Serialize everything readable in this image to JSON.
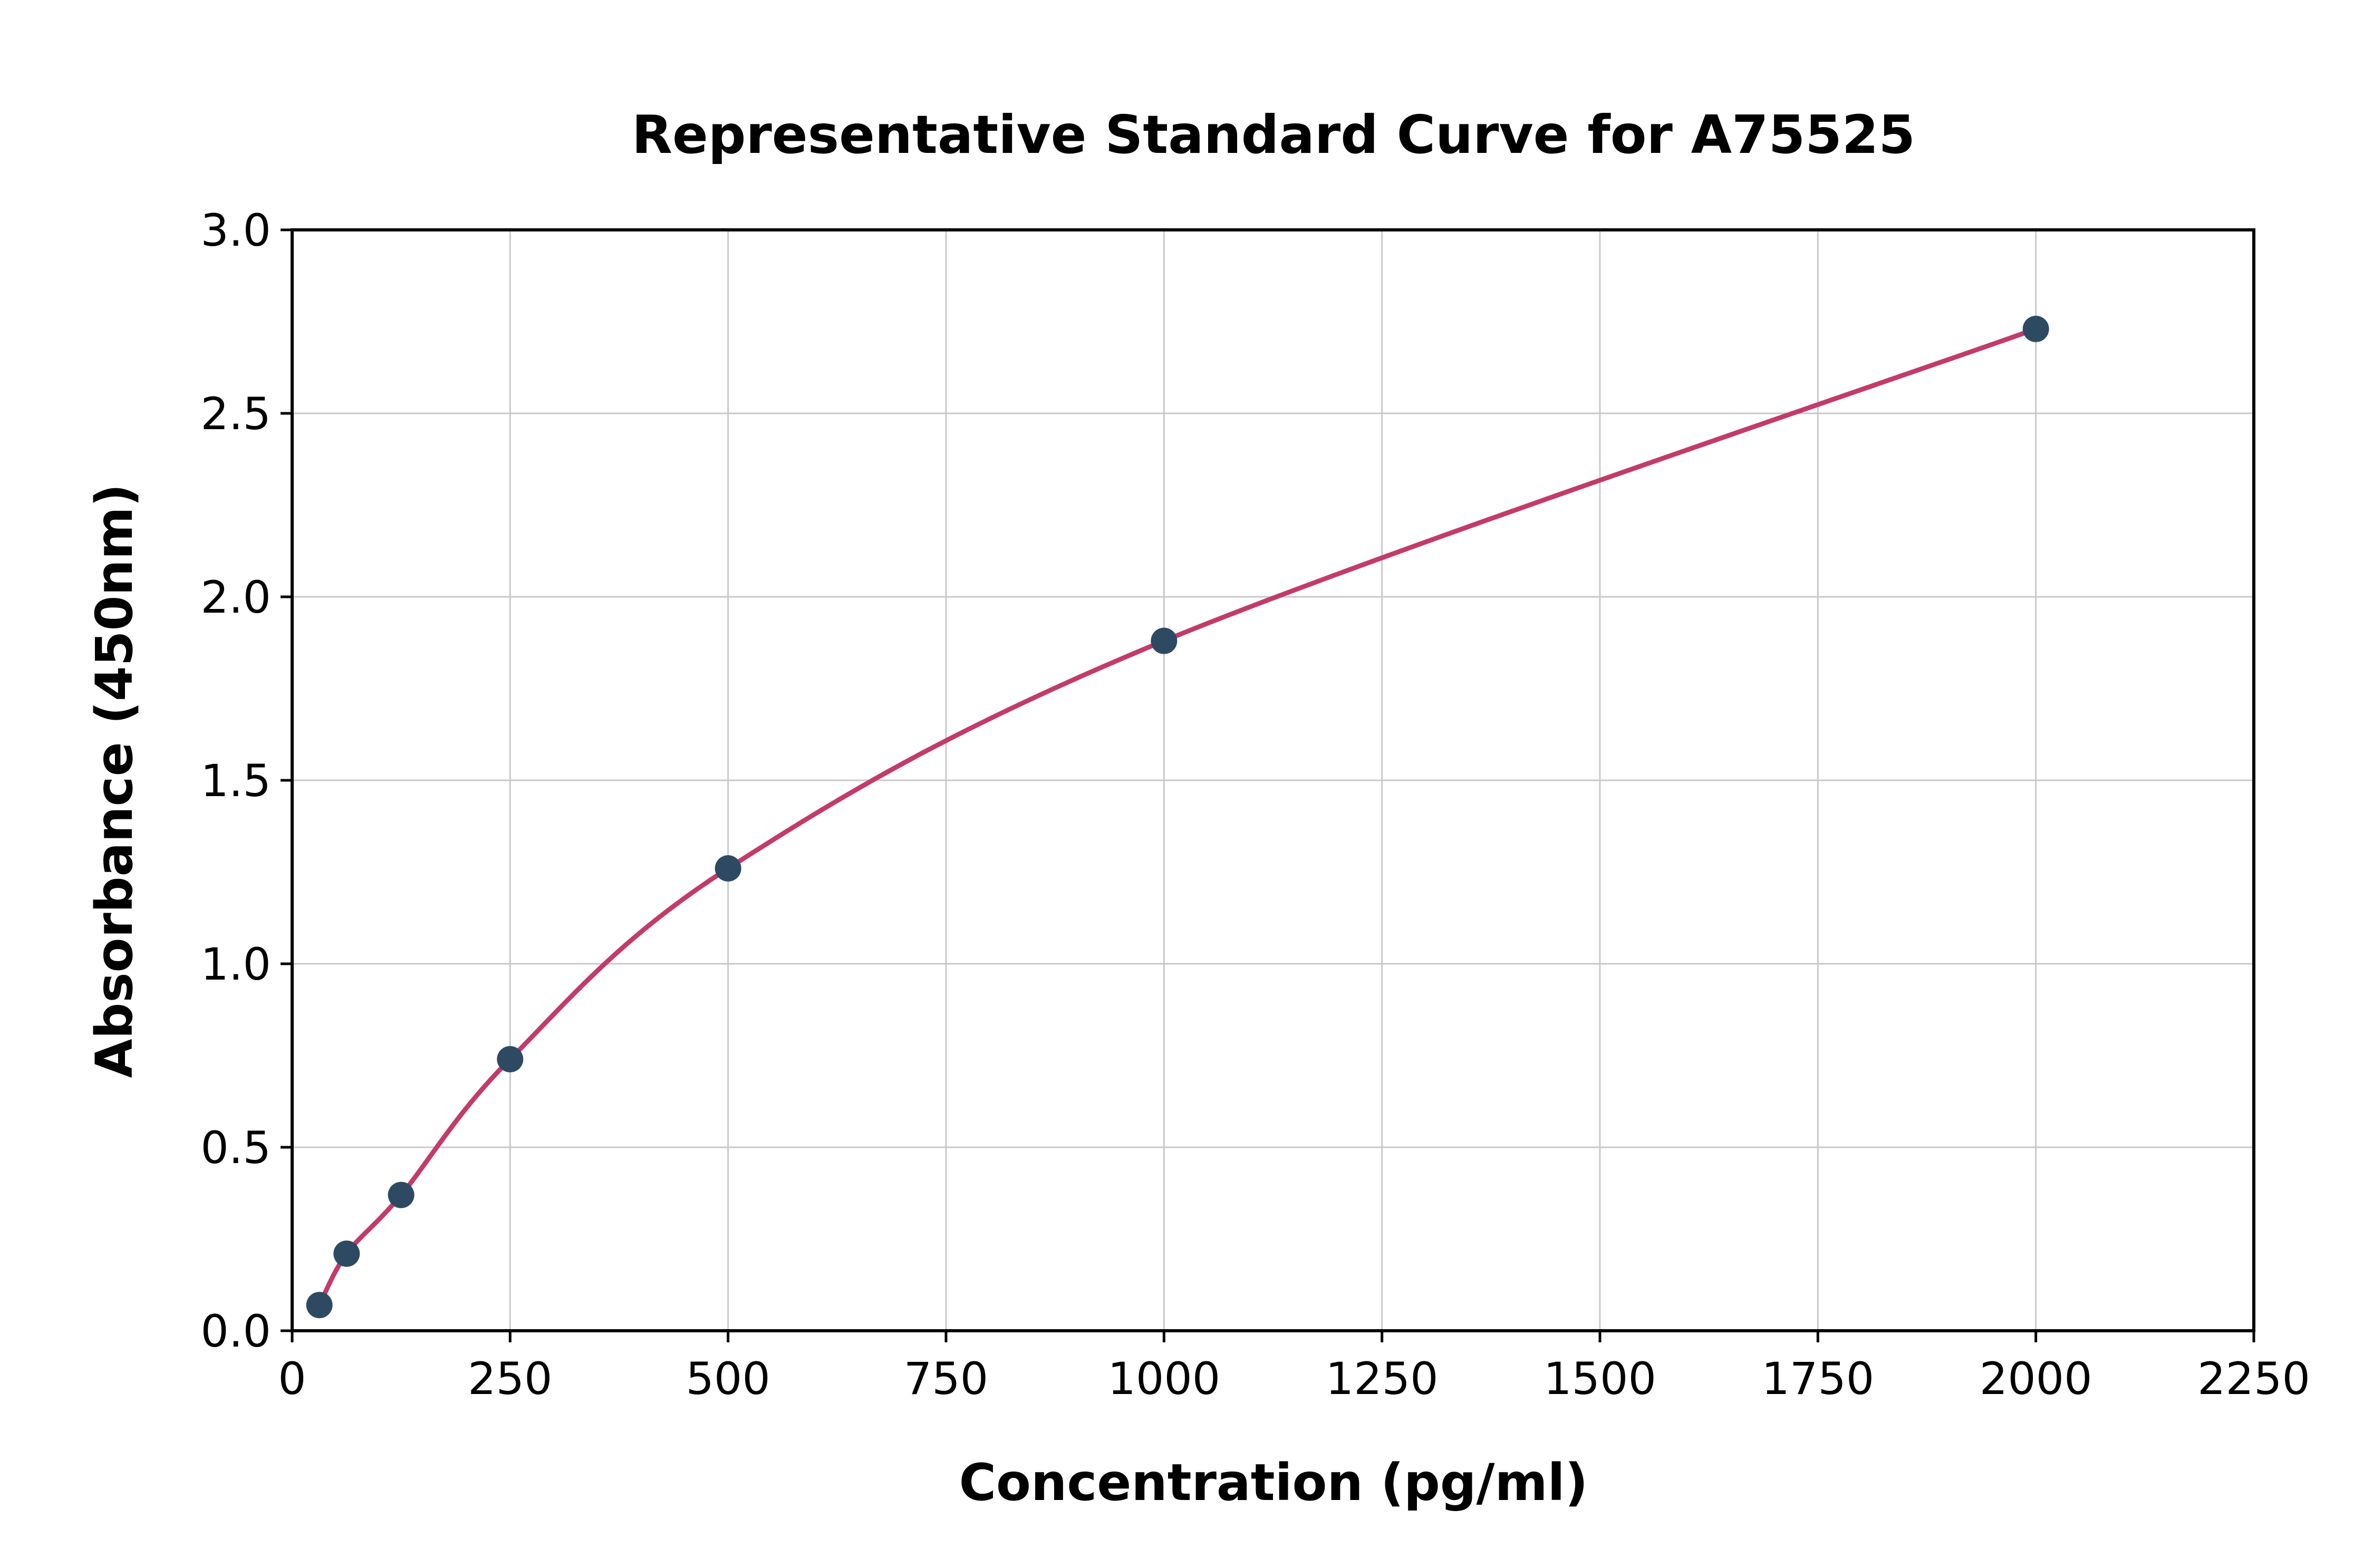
{
  "chart_data": {
    "type": "scatter",
    "title": "Representative Standard Curve for A75525",
    "xlabel": "Concentration (pg/ml)",
    "ylabel": "Absorbance (450nm)",
    "xlim": [
      0,
      2250
    ],
    "ylim": [
      0,
      3.0
    ],
    "xticks": [
      0,
      250,
      500,
      750,
      1000,
      1250,
      1500,
      1750,
      2000,
      2250
    ],
    "xtick_labels": [
      "0",
      "250",
      "500",
      "750",
      "1000",
      "1250",
      "1500",
      "1750",
      "2000",
      "2250"
    ],
    "yticks": [
      0.0,
      0.5,
      1.0,
      1.5,
      2.0,
      2.5,
      3.0
    ],
    "ytick_labels": [
      "0.0",
      "0.5",
      "1.0",
      "1.5",
      "2.0",
      "2.5",
      "3.0"
    ],
    "grid": true,
    "legend": "none",
    "series": [
      {
        "name": "standards",
        "type": "scatter",
        "points": [
          {
            "x": 31.25,
            "y": 0.07
          },
          {
            "x": 62.5,
            "y": 0.21
          },
          {
            "x": 125,
            "y": 0.37
          },
          {
            "x": 250,
            "y": 0.74
          },
          {
            "x": 500,
            "y": 1.26
          },
          {
            "x": 1000,
            "y": 1.88
          },
          {
            "x": 2000,
            "y": 2.73
          }
        ]
      },
      {
        "name": "fitted-curve",
        "type": "line",
        "points": [
          {
            "x": 31.25,
            "y": 0.07
          },
          {
            "x": 62.5,
            "y": 0.21
          },
          {
            "x": 125,
            "y": 0.37
          },
          {
            "x": 250,
            "y": 0.74
          },
          {
            "x": 500,
            "y": 1.26
          },
          {
            "x": 1000,
            "y": 1.88
          },
          {
            "x": 2000,
            "y": 2.73
          }
        ]
      }
    ],
    "colors": {
      "point": "#2e4a62",
      "line": "#c23b6b",
      "grid": "#c9c9c9",
      "axis": "#000000",
      "background": "#ffffff"
    }
  }
}
